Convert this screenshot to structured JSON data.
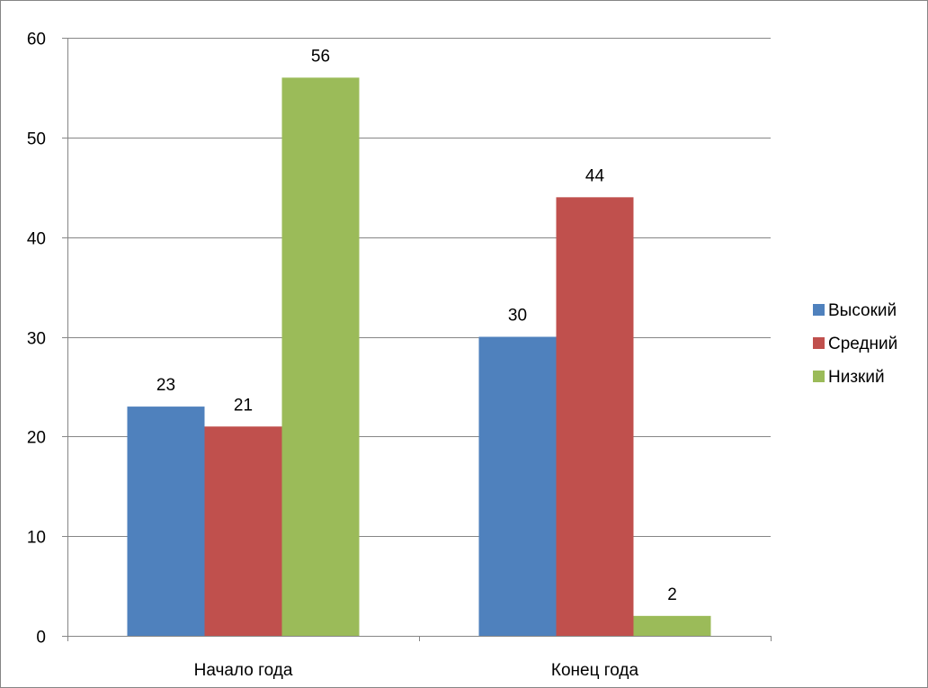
{
  "chart_data": {
    "type": "bar",
    "title": "",
    "xlabel": "",
    "ylabel": "",
    "categories": [
      "Начало года",
      "Конец года"
    ],
    "series": [
      {
        "name": "Высокий",
        "values": [
          23,
          30
        ],
        "color": "#4F81BD"
      },
      {
        "name": "Средний",
        "values": [
          21,
          44
        ],
        "color": "#C0504D"
      },
      {
        "name": "Низкий",
        "values": [
          56,
          2
        ],
        "color": "#9BBB59"
      }
    ],
    "ylim": [
      0,
      60
    ],
    "yticks": [
      0,
      10,
      20,
      30,
      40,
      50,
      60
    ],
    "grid": true,
    "legend_position": "right",
    "data_labels": true
  }
}
